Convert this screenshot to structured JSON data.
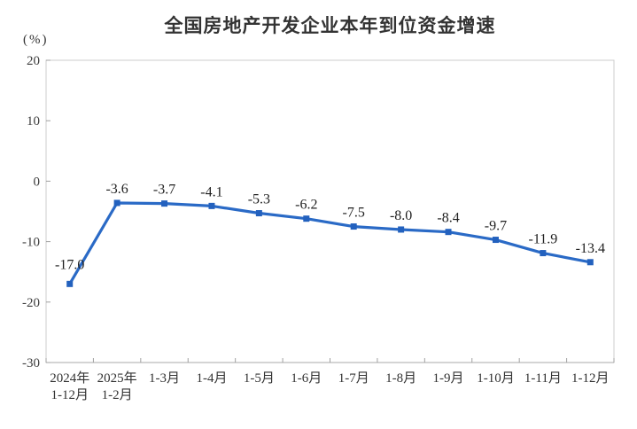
{
  "chart_data": {
    "type": "line",
    "title": "全国房地产开发企业本年到位资金增速",
    "unit_label": "(%)",
    "categories": [
      "2024年\n1-12月",
      "2025年\n1-2月",
      "1-3月",
      "1-4月",
      "1-5月",
      "1-6月",
      "1-7月",
      "1-8月",
      "1-9月",
      "1-10月",
      "1-11月",
      "1-12月"
    ],
    "values": [
      -17.0,
      -3.6,
      -3.7,
      -4.1,
      -5.3,
      -6.2,
      -7.5,
      -8.0,
      -8.4,
      -9.7,
      -11.9,
      -13.4
    ],
    "point_labels": [
      "-17.0",
      "-3.6",
      "-3.7",
      "-4.1",
      "-5.3",
      "-6.2",
      "-7.5",
      "-8.0",
      "-8.4",
      "-9.7",
      "-11.9",
      "-13.4"
    ],
    "y_ticks": [
      20,
      10,
      0,
      -10,
      -20,
      -30
    ],
    "ylim": [
      -30,
      20
    ],
    "grid": false,
    "legend": "none",
    "colors": {
      "line": "#2A6AC6",
      "marker": "#2361BE",
      "plot_border": "#cccccc",
      "axis_line": "#aaaaaa",
      "tick": "#a0a0a0"
    }
  }
}
